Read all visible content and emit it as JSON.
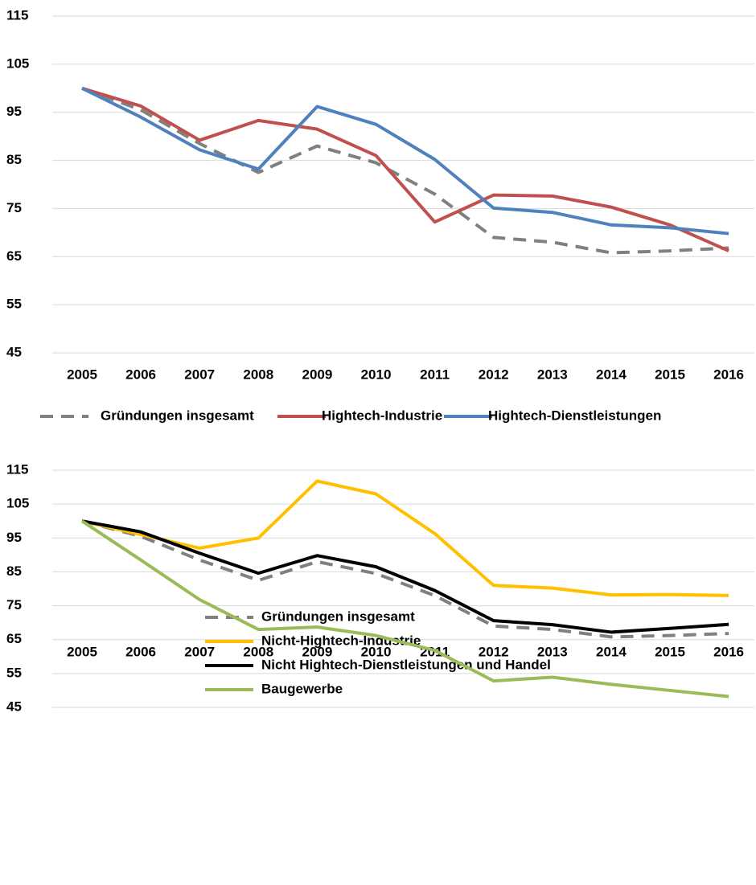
{
  "chart_data": [
    {
      "type": "line",
      "x": [
        "2005",
        "2006",
        "2007",
        "2008",
        "2009",
        "2010",
        "2011",
        "2012",
        "2013",
        "2014",
        "2015",
        "2016"
      ],
      "series": [
        {
          "name": "Gründungen insgesamt",
          "color": "#808080",
          "dashed": true,
          "values": [
            100,
            95.5,
            88.5,
            82.5,
            88,
            84.5,
            78,
            69,
            68,
            65.8,
            66.2,
            66.8
          ]
        },
        {
          "name": "Hightech-Industrie",
          "color": "#c0504d",
          "values": [
            100,
            96.3,
            89.2,
            93.3,
            91.5,
            86,
            72.2,
            77.8,
            77.6,
            75.3,
            71.6,
            66.2
          ]
        },
        {
          "name": "Hightech-Dienstleistungen",
          "color": "#4f81bd",
          "values": [
            100,
            94,
            87.2,
            83.2,
            96.2,
            92.5,
            85.2,
            75.1,
            74.2,
            71.6,
            71,
            69.8
          ]
        }
      ],
      "ylim": [
        45,
        115
      ],
      "yticks": [
        45,
        55,
        65,
        75,
        85,
        95,
        105,
        115
      ],
      "grid": true,
      "legend": "bottom"
    },
    {
      "type": "line",
      "x": [
        "2005",
        "2006",
        "2007",
        "2008",
        "2009",
        "2010",
        "2011",
        "2012",
        "2013",
        "2014",
        "2015",
        "2016"
      ],
      "series": [
        {
          "name": "Gründungen insgesamt",
          "color": "#808080",
          "dashed": true,
          "values": [
            100,
            95.5,
            88.5,
            82.5,
            88,
            84.5,
            78,
            69,
            68,
            65.8,
            66.2,
            66.8
          ]
        },
        {
          "name": "Nicht-Hightech-Industrie",
          "color": "#ffc000",
          "values": [
            100,
            96,
            92,
            95,
            111.8,
            108,
            96.3,
            81,
            80.2,
            78.2,
            78.3,
            78
          ]
        },
        {
          "name": "Nicht Hightech-Dienstleistungen und Handel",
          "color": "#000000",
          "values": [
            100,
            96.8,
            90.5,
            84.6,
            89.8,
            86.5,
            79.5,
            70.6,
            69.4,
            67.2,
            68.3,
            69.5
          ]
        },
        {
          "name": "Baugewerbe",
          "color": "#9bbb59",
          "values": [
            100,
            88.5,
            76.8,
            68,
            68.7,
            66.2,
            61.8,
            52.8,
            53.9,
            51.8,
            50,
            48.2
          ]
        }
      ],
      "ylim": [
        45,
        115
      ],
      "yticks": [
        45,
        55,
        65,
        75,
        85,
        95,
        105,
        115
      ],
      "grid": true,
      "legend": "bottom"
    }
  ]
}
